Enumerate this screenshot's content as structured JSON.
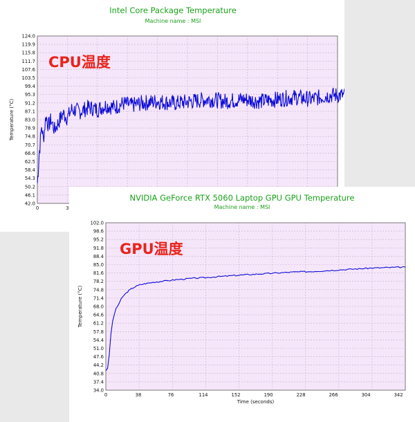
{
  "chart_data": [
    {
      "type": "line",
      "title": "Intel Core Package Temperature",
      "subtitle": "Machine name : MSI",
      "overlay_label": "CPU温度",
      "ylabel": "Temperature (°C)",
      "ylim": [
        42.0,
        124.0
      ],
      "yticks": [
        "124.0",
        "119.9",
        "115.8",
        "111.7",
        "107.6",
        "103.5",
        "99.4",
        "95.3",
        "91.2",
        "87.1",
        "83.0",
        "78.9",
        "74.8",
        "70.7",
        "66.6",
        "62.5",
        "58.4",
        "54.3",
        "50.2",
        "46.1",
        "42.0"
      ],
      "xticks_visible": [
        "0",
        "3"
      ],
      "colors": {
        "plot_bg": "#f6e6fa",
        "grid": "#c8b0cc",
        "line": "#0a0ad8",
        "title": "#1aa11a",
        "overlay": "#e8241c"
      },
      "grid": true,
      "series": [
        {
          "x": [
            0,
            1,
            2,
            3,
            5,
            7,
            10,
            13,
            16,
            20,
            25,
            30,
            35,
            40,
            50,
            60,
            70,
            80,
            90,
            100,
            110,
            120,
            140,
            160,
            180,
            200,
            220,
            240,
            260,
            280,
            300,
            320,
            340,
            360
          ],
          "values": [
            52.0,
            58.0,
            66.0,
            70.0,
            80.0,
            73.0,
            85.0,
            80.0,
            83.0,
            78.0,
            82.0,
            86.0,
            84.0,
            88.0,
            87.0,
            89.0,
            88.0,
            90.0,
            89.0,
            91.0,
            90.0,
            91.0,
            92.0,
            91.0,
            92.0,
            93.0,
            92.0,
            93.0,
            92.0,
            93.0,
            94.0,
            93.0,
            95.0,
            95.0
          ]
        }
      ]
    },
    {
      "type": "line",
      "title": "NVIDIA GeForce RTX 5060 Laptop GPU GPU Temperature",
      "subtitle": "Machine name : MSI",
      "overlay_label": "GPU温度",
      "xlabel": "Time (seconds)",
      "ylabel": "Temperature (°C)",
      "xlim": [
        0,
        350
      ],
      "ylim": [
        34.0,
        102.0
      ],
      "xticks": [
        "0",
        "38",
        "76",
        "114",
        "152",
        "190",
        "228",
        "266",
        "304",
        "342"
      ],
      "yticks": [
        "102.0",
        "98.6",
        "95.2",
        "91.8",
        "88.4",
        "85.0",
        "81.6",
        "78.2",
        "74.8",
        "71.4",
        "68.0",
        "64.6",
        "61.2",
        "57.8",
        "54.4",
        "51.0",
        "47.6",
        "44.2",
        "40.8",
        "37.4",
        "34.0"
      ],
      "colors": {
        "plot_bg": "#f6e6fa",
        "grid": "#c8b0cc",
        "line": "#0a0ad8",
        "title": "#1aa11a",
        "overlay": "#e8241c"
      },
      "grid": true,
      "series": [
        {
          "x": [
            0,
            2,
            4,
            6,
            8,
            10,
            12,
            15,
            18,
            21,
            24,
            27,
            30,
            33,
            36,
            40,
            45,
            50,
            55,
            60,
            70,
            80,
            90,
            100,
            110,
            120,
            130,
            140,
            150,
            160,
            170,
            180,
            190,
            200,
            210,
            220,
            230,
            240,
            250,
            260,
            270,
            280,
            290,
            300,
            310,
            320,
            330,
            340,
            350
          ],
          "values": [
            42.0,
            43.0,
            48.0,
            57.0,
            62.0,
            65.0,
            67.0,
            69.0,
            71.0,
            72.5,
            73.5,
            74.5,
            75.2,
            75.8,
            76.3,
            76.8,
            77.2,
            77.5,
            77.8,
            78.0,
            78.4,
            78.8,
            79.1,
            79.4,
            79.6,
            79.8,
            80.1,
            80.3,
            80.6,
            80.8,
            81.0,
            81.2,
            81.4,
            81.6,
            81.8,
            82.0,
            82.1,
            82.2,
            82.4,
            82.6,
            82.8,
            83.0,
            83.2,
            83.4,
            83.6,
            83.7,
            83.8,
            83.9,
            84.0
          ]
        }
      ]
    }
  ]
}
